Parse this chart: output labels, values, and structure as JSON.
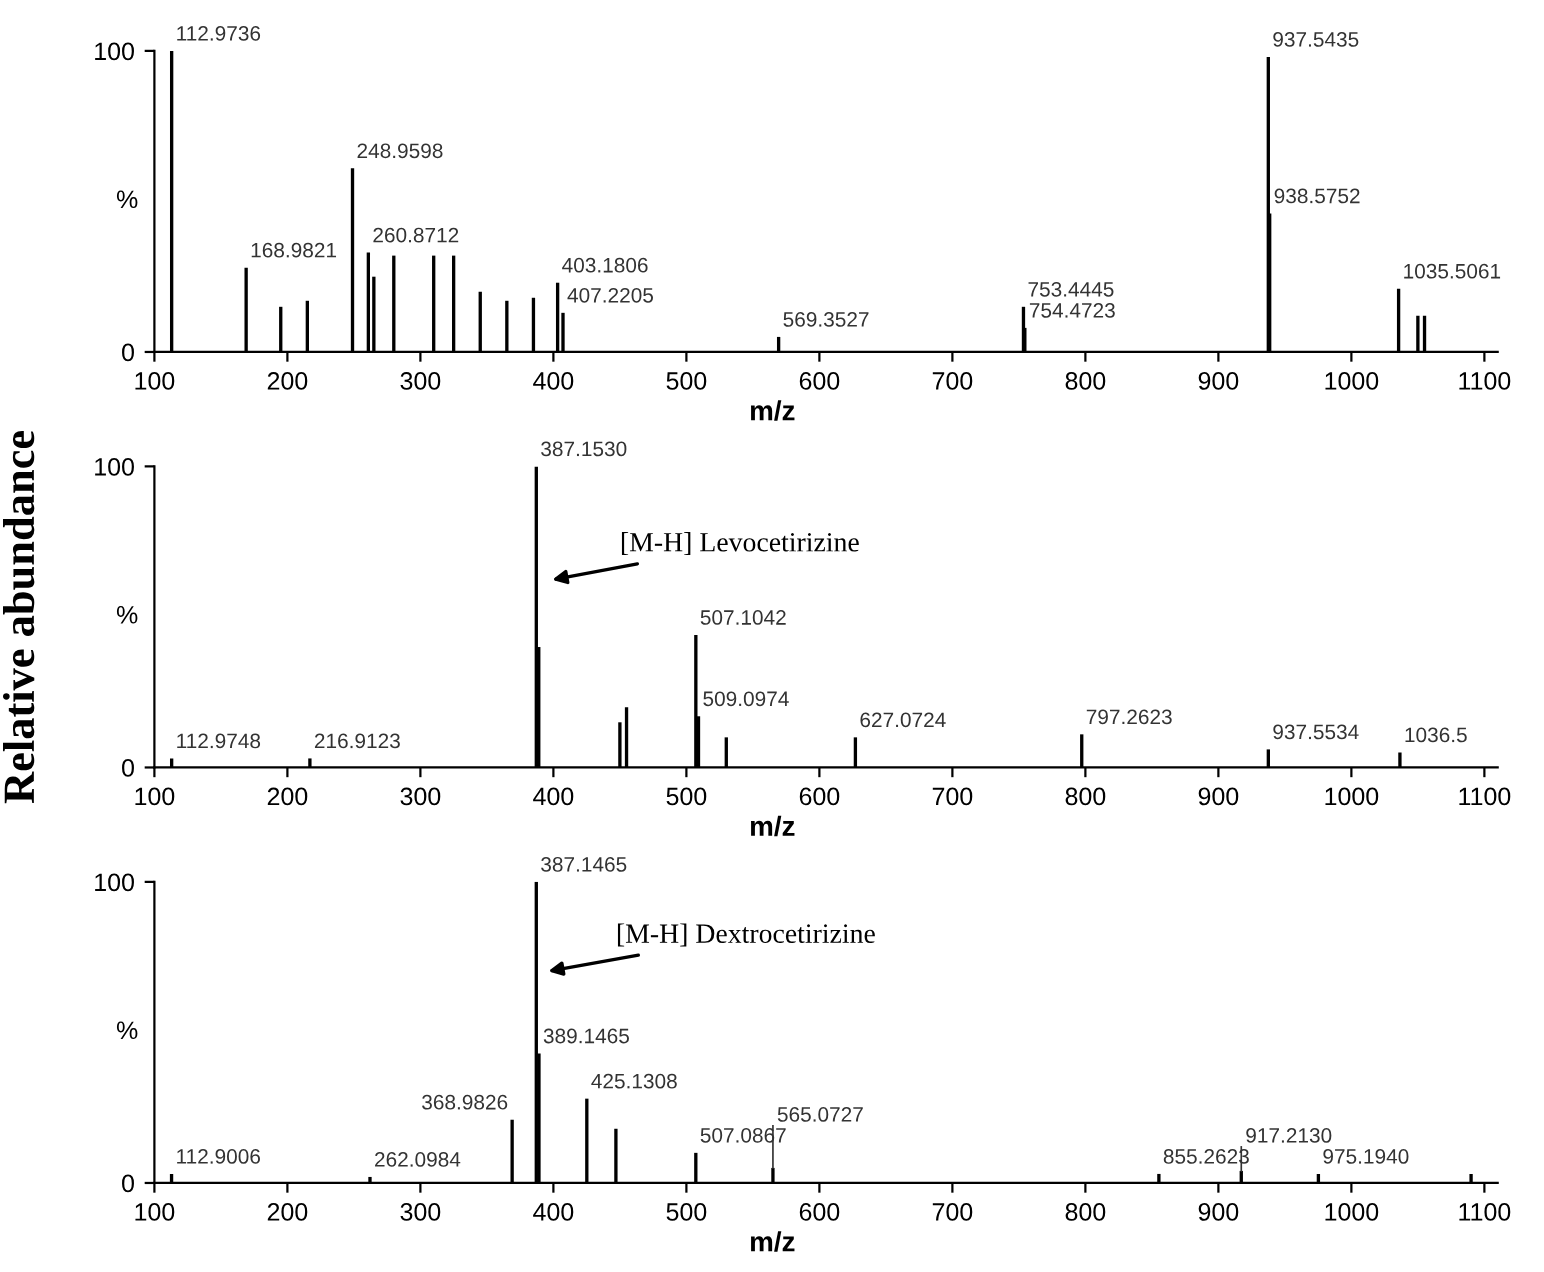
{
  "chart_data": [
    {
      "type": "bar",
      "xlabel": "m/z",
      "ylabel": "%",
      "color": "#000000",
      "xlim": [
        100,
        1110
      ],
      "xticks": [
        100,
        200,
        300,
        400,
        500,
        600,
        700,
        800,
        900,
        1000,
        1100
      ],
      "ylim": [
        0,
        100
      ],
      "yticks": [
        0,
        100
      ],
      "grid": false,
      "x": [
        112.9736,
        168.9821,
        195,
        215,
        248.9598,
        260.8712,
        265,
        280,
        310,
        325,
        345,
        365,
        385,
        403.1806,
        407.2205,
        569.3527,
        753.4445,
        754.4723,
        937.5435,
        938.5752,
        1035.5061,
        1050,
        1055
      ],
      "values": [
        100,
        28,
        15,
        17,
        61,
        33,
        25,
        32,
        32,
        32,
        20,
        17,
        18,
        23,
        13,
        5,
        15,
        8,
        98,
        46,
        21,
        12,
        12
      ],
      "annotations": [
        {
          "text": "112.9736",
          "x": 112.9736,
          "y": 100
        },
        {
          "text": "168.9821",
          "x": 168.9821,
          "y": 28
        },
        {
          "text": "248.9598",
          "x": 248.9598,
          "y": 61
        },
        {
          "text": "260.8712",
          "x": 260.8712,
          "y": 33
        },
        {
          "text": "403.1806",
          "x": 403.1806,
          "y": 23
        },
        {
          "text": "407.2205",
          "x": 407.2205,
          "y": 13
        },
        {
          "text": "569.3527",
          "x": 569.3527,
          "y": 5
        },
        {
          "text": "753.4445",
          "x": 753.4445,
          "y": 15
        },
        {
          "text": "754.4723",
          "x": 754.4723,
          "y": 8
        },
        {
          "text": "937.5435",
          "x": 937.5435,
          "y": 98
        },
        {
          "text": "938.5752",
          "x": 938.5752,
          "y": 46
        },
        {
          "text": "1035.5061",
          "x": 1035.5061,
          "y": 21
        }
      ]
    },
    {
      "type": "bar",
      "xlabel": "m/z",
      "ylabel": "%",
      "color": "#000000",
      "xlim": [
        100,
        1110
      ],
      "xticks": [
        100,
        200,
        300,
        400,
        500,
        600,
        700,
        800,
        900,
        1000,
        1100
      ],
      "ylim": [
        0,
        100
      ],
      "yticks": [
        0,
        100
      ],
      "grid": false,
      "x": [
        112.9748,
        216.9123,
        387.153,
        389,
        450,
        455,
        507.1042,
        509.0974,
        530,
        627.0724,
        797.2623,
        937.5534,
        1036.5
      ],
      "values": [
        3,
        3,
        100,
        40,
        15,
        20,
        44,
        17,
        10,
        10,
        11,
        6,
        5
      ],
      "annotations": [
        "Relative abundance",
        {
          "text": "112.9748",
          "x": 112.9748,
          "y": 3
        },
        {
          "text": "216.9123",
          "x": 216.9123,
          "y": 3
        },
        {
          "text": "387.1530",
          "x": 387.153,
          "y": 100
        },
        {
          "text": "507.1042",
          "x": 507.1042,
          "y": 44
        },
        {
          "text": "509.0974",
          "x": 509.0974,
          "y": 17
        },
        {
          "text": "627.0724",
          "x": 627.0724,
          "y": 10
        },
        {
          "text": "797.2623",
          "x": 797.2623,
          "y": 11
        },
        {
          "text": "937.5534",
          "x": 937.5534,
          "y": 6
        },
        {
          "text": "1036.5",
          "x": 1036.5,
          "y": 5
        },
        {
          "text": "[M-H] Levocetirizine",
          "x": 395,
          "y": 62
        }
      ]
    },
    {
      "type": "bar",
      "xlabel": "m/z",
      "ylabel": "%",
      "color": "#000000",
      "xlim": [
        100,
        1110
      ],
      "xticks": [
        100,
        200,
        300,
        400,
        500,
        600,
        700,
        800,
        900,
        1000,
        1100
      ],
      "ylim": [
        0,
        100
      ],
      "yticks": [
        0,
        100
      ],
      "grid": false,
      "x": [
        112.9006,
        262.0984,
        368.9826,
        387.1465,
        389.1465,
        425.1308,
        447,
        507.0867,
        565.0727,
        855.2623,
        917.213,
        975.194,
        1090
      ],
      "values": [
        3,
        2,
        21,
        100,
        43,
        28,
        18,
        10,
        5,
        3,
        4,
        3,
        3
      ],
      "annotations": [
        {
          "text": "112.9006",
          "x": 112.9006,
          "y": 3
        },
        {
          "text": "262.0984",
          "x": 262.0984,
          "y": 2
        },
        {
          "text": "368.9826",
          "x": 368.9826,
          "y": 21
        },
        {
          "text": "387.1465",
          "x": 387.1465,
          "y": 100
        },
        {
          "text": "389.1465",
          "x": 389.1465,
          "y": 43
        },
        {
          "text": "425.1308",
          "x": 425.1308,
          "y": 28
        },
        {
          "text": "507.0867",
          "x": 507.0867,
          "y": 10
        },
        {
          "text": "565.0727",
          "x": 565.0727,
          "y": 5
        },
        {
          "text": "855.2623",
          "x": 855.2623,
          "y": 3
        },
        {
          "text": "917.2130",
          "x": 917.213,
          "y": 4
        },
        {
          "text": "975.1940",
          "x": 975.194,
          "y": 3
        },
        {
          "text": "[M-H] Dextrocetirizine",
          "x": 392,
          "y": 70
        }
      ]
    }
  ]
}
